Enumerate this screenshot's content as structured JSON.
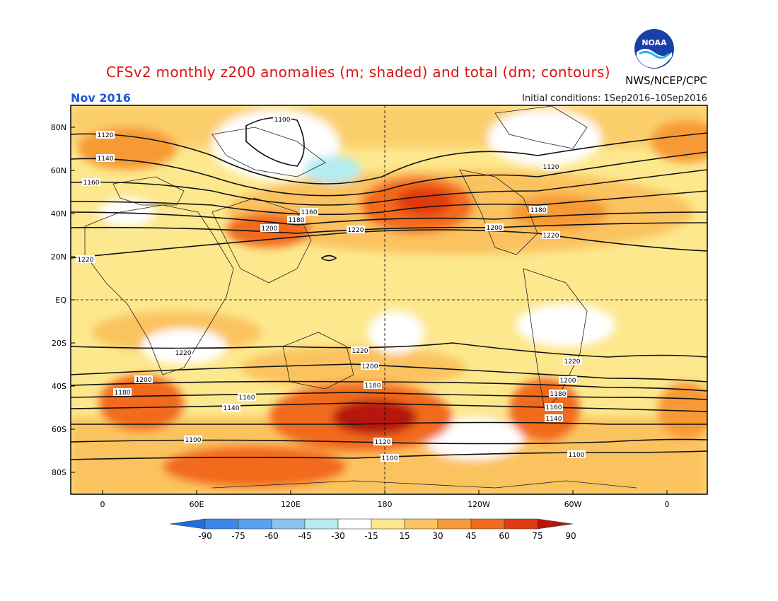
{
  "header": {
    "title": "CFSv2 monthly z200 anomalies (m; shaded) and total (dm; contours)",
    "agency": "NWS/NCEP/CPC",
    "valid_month": "Nov 2016",
    "initial_conditions": "Initial conditions: 1Sep2016–10Sep2016",
    "logo_text": "NOAA"
  },
  "axes": {
    "lat_labels": [
      "80N",
      "60N",
      "40N",
      "20N",
      "EQ",
      "20S",
      "40S",
      "60S",
      "80S"
    ],
    "lon_labels": [
      "0",
      "60E",
      "120E",
      "180",
      "120W",
      "60W",
      "0"
    ]
  },
  "colorbar": {
    "ticks": [
      "-90",
      "-75",
      "-60",
      "-45",
      "-30",
      "-15",
      "15",
      "30",
      "45",
      "60",
      "75",
      "90"
    ],
    "colors": [
      "#1e6fdc",
      "#3a88e8",
      "#5aa0ee",
      "#8cc2f2",
      "#b4ecf2",
      "#ffffff",
      "#fde88e",
      "#fbc35e",
      "#f79a35",
      "#f26a1c",
      "#e03a10",
      "#b5170a"
    ]
  },
  "contour_labels": [
    "1100",
    "1120",
    "1140",
    "1160",
    "1180",
    "1200",
    "1220"
  ]
}
